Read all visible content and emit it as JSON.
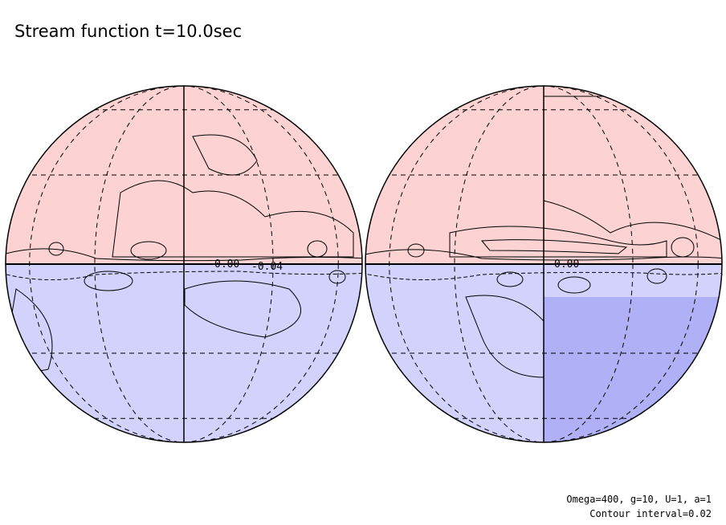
{
  "header": {
    "title": "Stream function t=10.0sec"
  },
  "globes": [
    {
      "contour_labels": [
        "0.00",
        "-0.04"
      ]
    },
    {
      "contour_labels": [
        "0.00"
      ]
    }
  ],
  "footer": {
    "parameters": "Omega=400, g=10, U=1, a=1",
    "contour_interval": "Contour interval=0.02"
  }
}
